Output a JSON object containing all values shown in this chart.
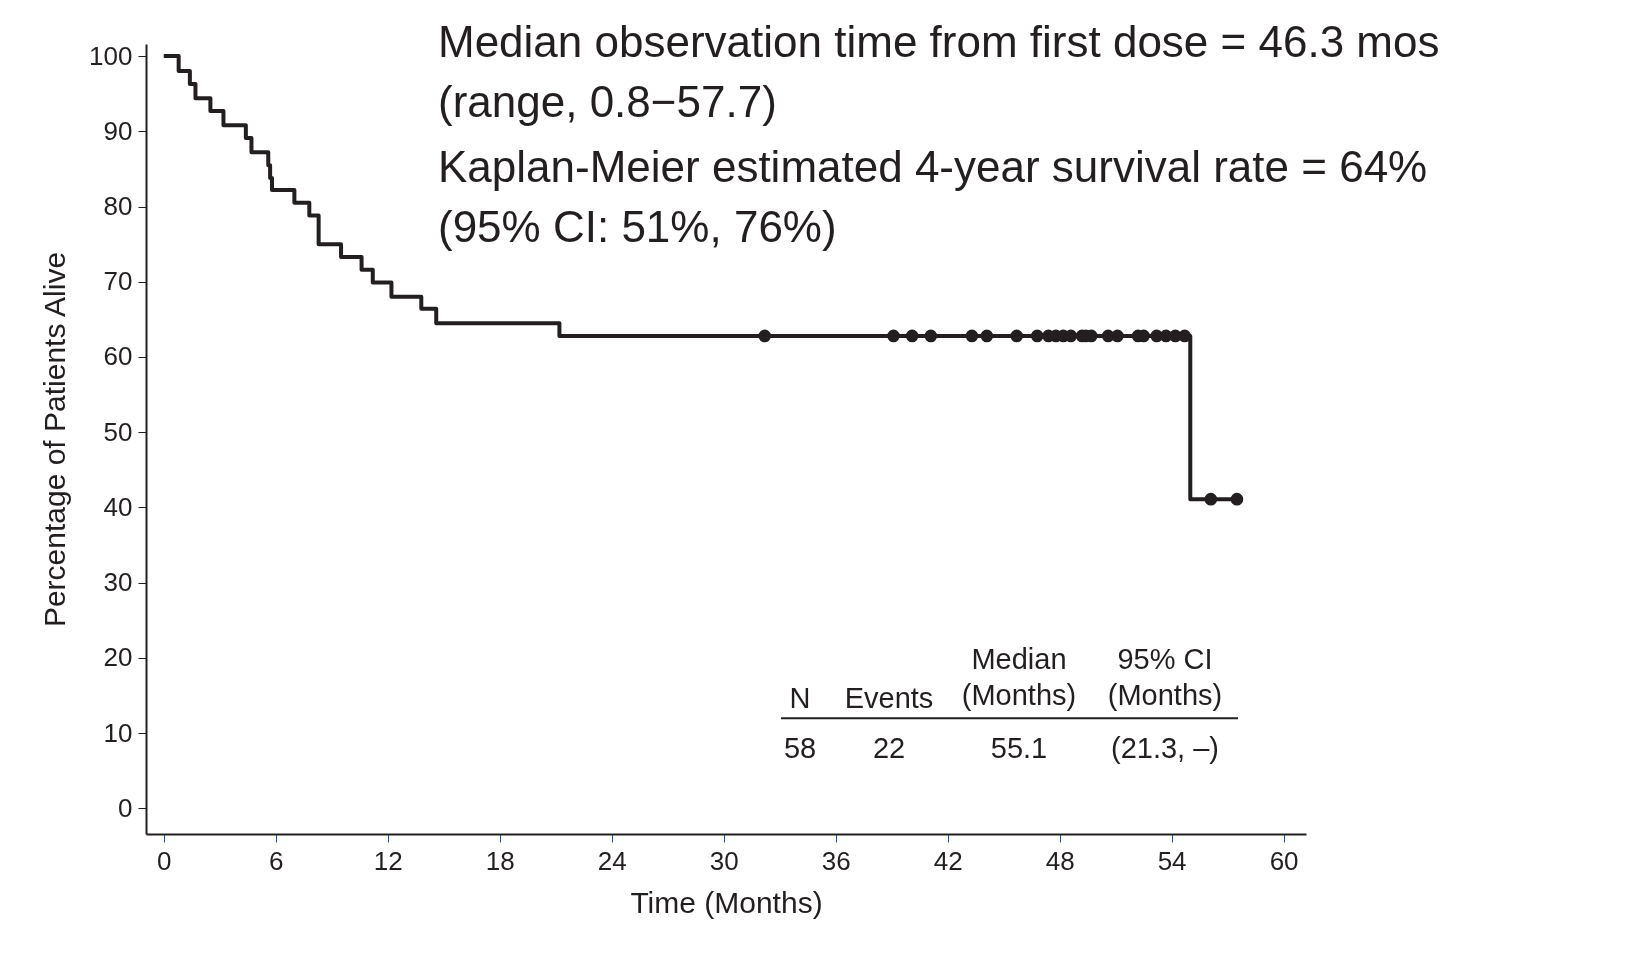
{
  "chart_data": {
    "type": "step",
    "xlabel": "Time (Months)",
    "ylabel": "Percentage of Patients Alive",
    "xlim": [
      -0.95,
      61.2
    ],
    "xticks": [
      0,
      6,
      12,
      18,
      24,
      30,
      36,
      42,
      48,
      54,
      60
    ],
    "ylim": [
      -3.4,
      101.6
    ],
    "yticks": [
      0,
      10,
      20,
      30,
      40,
      50,
      60,
      70,
      80,
      90,
      100
    ],
    "grid": false,
    "series": [
      {
        "color": "#231f20",
        "line_style": "solid",
        "x": [
          0,
          0.8,
          1.4,
          1.7,
          2.5,
          3.2,
          4.4,
          4.7,
          5.6,
          5.7,
          5.8,
          7.0,
          7.8,
          8.3,
          9.5,
          10.6,
          11.2,
          12.2,
          13.8,
          14.6,
          21.2,
          55.0,
          57.5
        ],
        "values": [
          100,
          98.0,
          96.3,
          94.4,
          92.7,
          90.8,
          89.1,
          87.2,
          85.5,
          83.8,
          82.2,
          80.5,
          78.8,
          75.0,
          73.3,
          71.6,
          69.9,
          68.0,
          66.4,
          64.5,
          62.8,
          41.1,
          41.1
        ]
      },
      {
        "type": "scatter",
        "color": "#231f20",
        "marker": "circle",
        "x": [
          32.2,
          39.1,
          40.1,
          41.1,
          43.3,
          44.1,
          45.7,
          46.8,
          47.4,
          47.8,
          48.2,
          48.6,
          49.2,
          49.4,
          49.7,
          50.6,
          51.1,
          52.2,
          52.5,
          53.2,
          53.7,
          54.2,
          54.7,
          56.1,
          57.5
        ],
        "values": [
          62.8,
          62.8,
          62.8,
          62.8,
          62.8,
          62.8,
          62.8,
          62.8,
          62.8,
          62.8,
          62.8,
          62.8,
          62.8,
          62.8,
          62.8,
          62.8,
          62.8,
          62.8,
          62.8,
          62.8,
          62.8,
          62.8,
          62.8,
          41.1,
          41.1
        ]
      }
    ],
    "annotations": [
      "Median observation time from first dose = 46.3 mos\n(range, 0.8−57.7)",
      "Kaplan-Meier estimated 4-year survival rate = 64%\n(95% CI: 51%, 76%)",
      "N",
      "Events",
      "Median\n(Months)",
      "95% CI\n(Months)",
      "58",
      "22",
      "55.1",
      "(21.3, –)"
    ]
  }
}
